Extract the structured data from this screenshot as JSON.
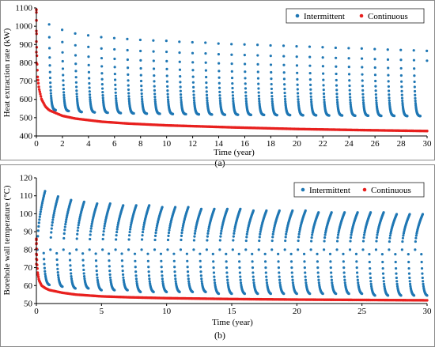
{
  "colors": {
    "intermittent": "#1f77b4",
    "continuous": "#e8201e",
    "axis": "#000000",
    "frame": "#8a8a8a"
  },
  "chart_data": [
    {
      "type": "scatter",
      "panel": "a",
      "caption": "(a)",
      "xlabel": "Time (year)",
      "ylabel": "Heat extraction rate (kW)",
      "xlim": [
        0,
        30
      ],
      "ylim": [
        400,
        1100
      ],
      "x_ticks": [
        "0",
        "2",
        "4",
        "6",
        "8",
        "10",
        "12",
        "14",
        "16",
        "18",
        "20",
        "22",
        "24",
        "26",
        "28",
        "30"
      ],
      "y_ticks": [
        "400",
        "500",
        "600",
        "700",
        "800",
        "900",
        "1000",
        "1100"
      ],
      "grid": false,
      "legend_position": "top-right",
      "series": [
        {
          "name": "Intermittent",
          "pattern": "annual-cycle",
          "cycles": 30,
          "cycle_start_peak": [
            1010,
            980,
            960,
            950,
            940,
            935,
            930,
            925,
            922,
            920,
            915,
            912,
            910,
            905,
            902,
            900,
            898,
            895,
            893,
            890,
            888,
            885,
            882,
            880,
            878,
            875,
            872,
            870,
            868,
            865
          ],
          "cycle_end_min": [
            540,
            535,
            530,
            528,
            526,
            524,
            522,
            521,
            520,
            519,
            518,
            517,
            516,
            515,
            515,
            514,
            514,
            513,
            513,
            512,
            512,
            511,
            511,
            510,
            510,
            509,
            509,
            508,
            508,
            507
          ]
        },
        {
          "name": "Continuous",
          "pattern": "decay",
          "x": [
            0,
            0.02,
            0.05,
            0.1,
            0.2,
            0.4,
            0.7,
            1,
            2,
            3,
            5,
            7,
            10,
            15,
            20,
            25,
            30
          ],
          "y": [
            1090,
            900,
            800,
            720,
            660,
            600,
            560,
            540,
            510,
            495,
            478,
            468,
            458,
            447,
            438,
            432,
            427
          ]
        }
      ]
    },
    {
      "type": "scatter",
      "panel": "b",
      "caption": "(b)",
      "xlabel": "Time (year)",
      "ylabel": "Borehole wall temperature (°C)",
      "xlim": [
        0,
        30
      ],
      "ylim": [
        50,
        120
      ],
      "x_ticks": [
        "0",
        "5",
        "10",
        "15",
        "20",
        "25",
        "30"
      ],
      "y_ticks": [
        "50",
        "60",
        "70",
        "80",
        "90",
        "100",
        "110",
        "120"
      ],
      "grid": false,
      "legend_position": "top-right",
      "series": [
        {
          "name": "Intermittent",
          "pattern": "annual-cycle",
          "cycles": 30,
          "cycle_peak": [
            113,
            110,
            108,
            107,
            106,
            106,
            105,
            105,
            105,
            104,
            104,
            104,
            103,
            103,
            103,
            103,
            102,
            102,
            102,
            102,
            102,
            101,
            101,
            101,
            101,
            101,
            101,
            100,
            100,
            100
          ],
          "cycle_min": [
            60,
            59,
            58,
            58,
            57,
            57,
            57,
            56,
            56,
            56,
            56,
            56,
            56,
            55,
            55,
            55,
            55,
            55,
            55,
            55,
            55,
            55,
            55,
            55,
            55,
            54,
            54,
            54,
            54,
            54
          ]
        },
        {
          "name": "Continuous",
          "pattern": "decay",
          "x": [
            0,
            0.02,
            0.05,
            0.1,
            0.2,
            0.4,
            0.7,
            1,
            2,
            3,
            5,
            7,
            10,
            15,
            20,
            25,
            30
          ],
          "y": [
            86,
            78,
            72,
            67,
            63,
            60,
            58.5,
            57.5,
            56,
            55,
            54,
            53.5,
            53,
            52.5,
            52.2,
            52,
            51.8
          ]
        }
      ]
    }
  ]
}
